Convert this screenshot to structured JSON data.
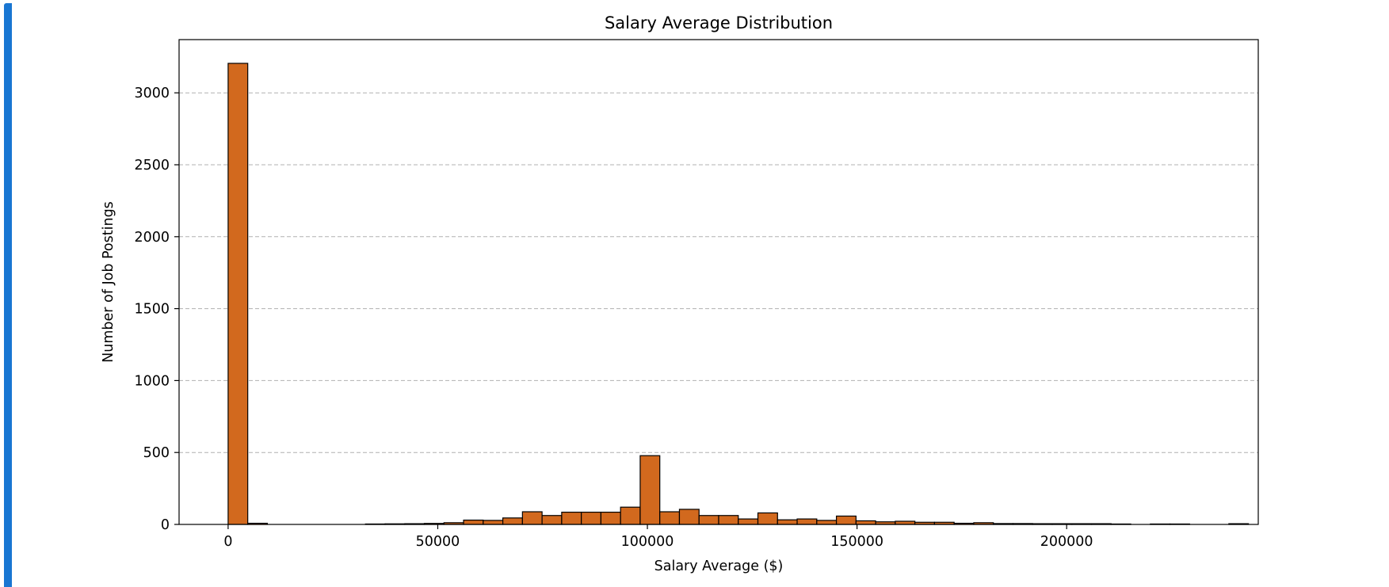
{
  "chart_data": {
    "type": "bar",
    "title": "Salary Average Distribution",
    "xlabel": "Salary Average ($)",
    "ylabel": "Number of Job Postings",
    "xlim": [
      -11700,
      245700
    ],
    "ylim": [
      0,
      3370
    ],
    "xticks": [
      0,
      50000,
      100000,
      150000,
      200000
    ],
    "yticks": [
      0,
      500,
      1000,
      1500,
      2000,
      2500,
      3000
    ],
    "grid": "y-dashed",
    "bar_color": "#d2691e",
    "bin_edges_start": 0,
    "bin_width": 4680,
    "values": [
      3205,
      8,
      0,
      0,
      0,
      0,
      0,
      3,
      4,
      5,
      7,
      12,
      30,
      28,
      45,
      88,
      62,
      85,
      85,
      85,
      120,
      478,
      88,
      105,
      62,
      62,
      38,
      80,
      32,
      38,
      28,
      58,
      25,
      18,
      22,
      15,
      15,
      8,
      12,
      6,
      6,
      5,
      5,
      5,
      5,
      3,
      0,
      3,
      3,
      0,
      0,
      5
    ]
  }
}
